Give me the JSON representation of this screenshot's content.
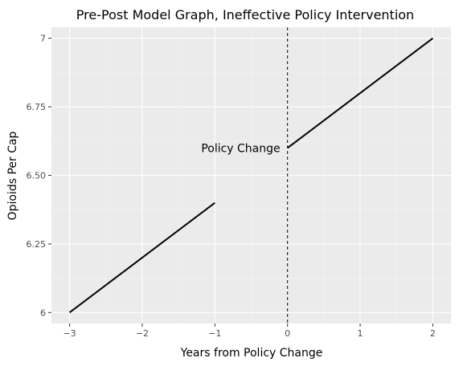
{
  "chart_data": {
    "type": "line",
    "title": "Pre-Post Model Graph, Ineffective Policy Intervention",
    "xlabel": "Years from Policy Change",
    "ylabel": "Opioids Per Cap",
    "xlim": [
      -3.25,
      2.25
    ],
    "ylim": [
      5.96,
      7.04
    ],
    "x_ticks": [
      -3,
      -2,
      -1,
      0,
      1,
      2
    ],
    "x_tick_labels": [
      "−3",
      "−2",
      "−1",
      "0",
      "1",
      "2"
    ],
    "y_ticks": [
      6,
      6.25,
      6.5,
      6.75,
      7
    ],
    "y_tick_labels": [
      "6",
      "6.25",
      "6.50",
      "6.75",
      "7"
    ],
    "grid": true,
    "background": "#ebebeb",
    "series": [
      {
        "x": [
          -3,
          -1
        ],
        "y": [
          6.0,
          6.4
        ],
        "color": "#000000"
      },
      {
        "x": [
          0,
          2
        ],
        "y": [
          6.6,
          7.0
        ],
        "color": "#000000"
      }
    ],
    "vline": {
      "x": 0,
      "style": "dashed",
      "color": "#000000"
    },
    "annotations": [
      {
        "text": "Policy Change",
        "x": -0.1,
        "y": 6.6,
        "anchor": "end"
      }
    ]
  }
}
